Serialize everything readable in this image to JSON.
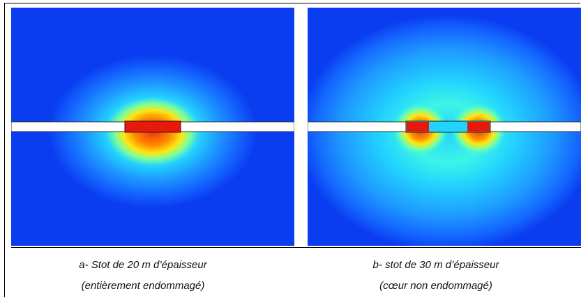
{
  "figure": {
    "panels": [
      {
        "id": "a",
        "caption_line1": "a-  Stot de 20 m d’épaisseur",
        "caption_line2": "(entièrement endommagé)",
        "damage": "full"
      },
      {
        "id": "b",
        "caption_line1": "b- stot de 30 m d’épaisseur",
        "caption_line2": "(cœur non endommagé)",
        "damage": "edges"
      }
    ],
    "colors": {
      "background_blue": "#0a3cf0",
      "gallery": "#ffffff",
      "pillar_red": "#e8180a",
      "colormap": [
        "#0a3cf0",
        "#1466ff",
        "#1e9bff",
        "#22d2ff",
        "#3cf5e6",
        "#7dff9a",
        "#d2ff3c",
        "#ffe614",
        "#ff8c00",
        "#f0320a"
      ]
    }
  }
}
